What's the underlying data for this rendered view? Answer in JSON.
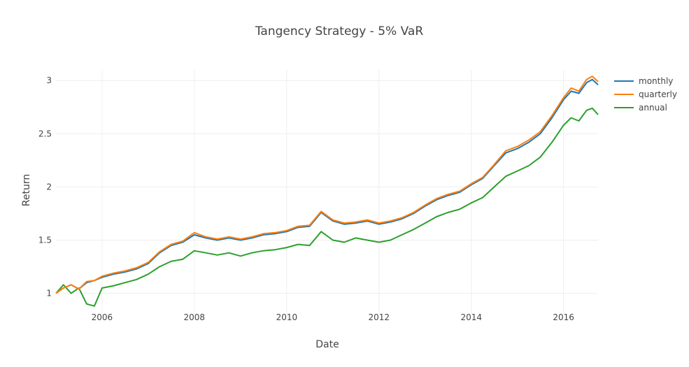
{
  "chart_data": {
    "type": "line",
    "title": "Tangency Strategy - 5% VaR",
    "xlabel": "Date",
    "ylabel": "Return",
    "xlim": [
      "2005-01-01",
      "2016-09-30"
    ],
    "ylim": [
      0.8,
      3.1
    ],
    "x_ticks": [
      "2006",
      "2008",
      "2010",
      "2012",
      "2014",
      "2016"
    ],
    "x_tick_dates": [
      "2006-01-01",
      "2008-01-01",
      "2010-01-01",
      "2012-01-01",
      "2014-01-01",
      "2016-01-01"
    ],
    "y_ticks": [
      1,
      1.5,
      2,
      2.5,
      3
    ],
    "y_tick_labels": [
      "1",
      "1.5",
      "2",
      "2.5",
      "3"
    ],
    "grid": true,
    "legend_position": "top-right",
    "colors": {
      "monthly": "#1f77b4",
      "quarterly": "#ff7f0e",
      "annual": "#2ca02c"
    },
    "x": [
      "2005-01-01",
      "2005-03-01",
      "2005-05-01",
      "2005-07-01",
      "2005-09-01",
      "2005-11-01",
      "2006-01-01",
      "2006-04-01",
      "2006-07-01",
      "2006-10-01",
      "2007-01-01",
      "2007-04-01",
      "2007-07-01",
      "2007-10-01",
      "2008-01-01",
      "2008-04-01",
      "2008-07-01",
      "2008-10-01",
      "2009-01-01",
      "2009-04-01",
      "2009-07-01",
      "2009-10-01",
      "2010-01-01",
      "2010-04-01",
      "2010-07-01",
      "2010-10-01",
      "2011-01-01",
      "2011-04-01",
      "2011-07-01",
      "2011-10-01",
      "2012-01-01",
      "2012-04-01",
      "2012-07-01",
      "2012-10-01",
      "2013-01-01",
      "2013-04-01",
      "2013-07-01",
      "2013-10-01",
      "2014-01-01",
      "2014-04-01",
      "2014-07-01",
      "2014-10-01",
      "2015-01-01",
      "2015-04-01",
      "2015-07-01",
      "2015-10-01",
      "2016-01-01",
      "2016-03-01",
      "2016-05-01",
      "2016-07-01",
      "2016-08-15",
      "2016-09-30"
    ],
    "series": [
      {
        "name": "monthly",
        "values": [
          1.0,
          1.05,
          1.08,
          1.04,
          1.1,
          1.12,
          1.15,
          1.18,
          1.2,
          1.23,
          1.28,
          1.38,
          1.45,
          1.48,
          1.55,
          1.52,
          1.5,
          1.52,
          1.5,
          1.52,
          1.55,
          1.56,
          1.58,
          1.62,
          1.63,
          1.76,
          1.68,
          1.65,
          1.66,
          1.68,
          1.65,
          1.67,
          1.7,
          1.75,
          1.82,
          1.88,
          1.92,
          1.95,
          2.02,
          2.08,
          2.2,
          2.32,
          2.36,
          2.42,
          2.5,
          2.65,
          2.82,
          2.9,
          2.88,
          2.98,
          3.01,
          2.96
        ]
      },
      {
        "name": "quarterly",
        "values": [
          1.0,
          1.05,
          1.08,
          1.04,
          1.11,
          1.12,
          1.16,
          1.19,
          1.21,
          1.24,
          1.29,
          1.39,
          1.46,
          1.49,
          1.57,
          1.53,
          1.51,
          1.53,
          1.51,
          1.53,
          1.56,
          1.57,
          1.59,
          1.63,
          1.64,
          1.77,
          1.69,
          1.66,
          1.67,
          1.69,
          1.66,
          1.68,
          1.71,
          1.76,
          1.83,
          1.89,
          1.93,
          1.96,
          2.03,
          2.09,
          2.21,
          2.34,
          2.38,
          2.44,
          2.52,
          2.67,
          2.84,
          2.93,
          2.9,
          3.01,
          3.04,
          2.99
        ]
      },
      {
        "name": "annual",
        "values": [
          1.0,
          1.08,
          1.0,
          1.05,
          0.9,
          0.88,
          1.05,
          1.07,
          1.1,
          1.13,
          1.18,
          1.25,
          1.3,
          1.32,
          1.4,
          1.38,
          1.36,
          1.38,
          1.35,
          1.38,
          1.4,
          1.41,
          1.43,
          1.46,
          1.45,
          1.58,
          1.5,
          1.48,
          1.52,
          1.5,
          1.48,
          1.5,
          1.55,
          1.6,
          1.66,
          1.72,
          1.76,
          1.79,
          1.85,
          1.9,
          2.0,
          2.1,
          2.15,
          2.2,
          2.28,
          2.42,
          2.58,
          2.65,
          2.62,
          2.72,
          2.74,
          2.68
        ]
      }
    ]
  }
}
